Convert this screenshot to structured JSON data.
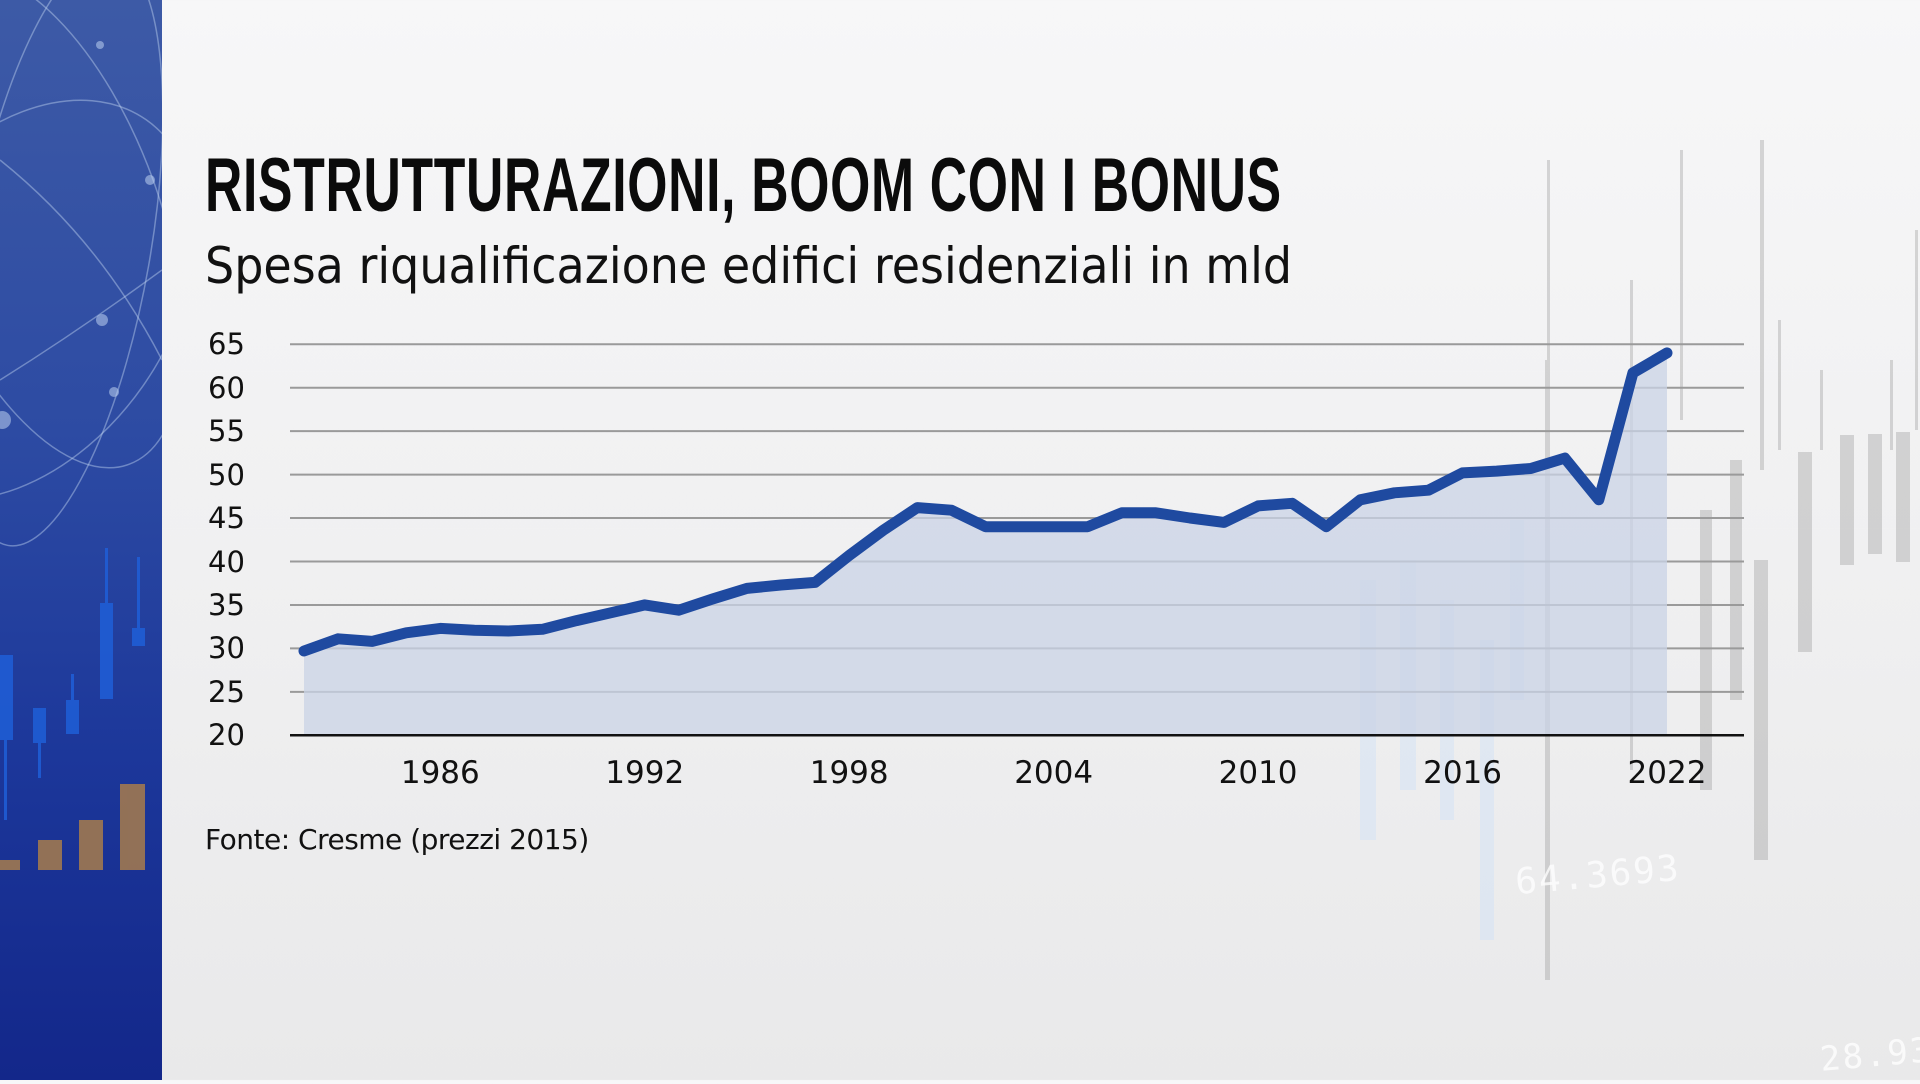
{
  "header": {
    "title": "RISTRUTTURAZIONI, BOOM CON I BONUS",
    "subtitle": "Spesa riqualificazione edifici residenziali in mld"
  },
  "footer": {
    "source": "Fonte: Cresme (prezzi 2015)"
  },
  "colors": {
    "line": "#1f4aa0",
    "fill": "#c9d3e6",
    "grid": "#9a9a9a",
    "axis": "#111111",
    "panel_top": "#3d5aa6",
    "panel_bottom": "#13278a"
  },
  "decorations": {
    "bg_number_1": "64.3693",
    "bg_number_2": "28.93"
  },
  "chart_data": {
    "type": "area",
    "title": "RISTRUTTURAZIONI, BOOM CON I BONUS",
    "subtitle": "Spesa riqualificazione edifici residenziali in mld",
    "xlabel": "",
    "ylabel": "",
    "source": "Fonte: Cresme (prezzi 2015)",
    "ylim": [
      20,
      65
    ],
    "yticks": [
      65,
      60,
      55,
      50,
      45,
      40,
      35,
      30,
      25,
      20
    ],
    "xticks": [
      1986,
      1992,
      1998,
      2004,
      2010,
      2016,
      2022
    ],
    "xlim": [
      1982,
      2022
    ],
    "grid": true,
    "legend": null,
    "x": [
      1982,
      1983,
      1984,
      1985,
      1986,
      1987,
      1988,
      1989,
      1990,
      1991,
      1992,
      1993,
      1994,
      1995,
      1996,
      1997,
      1998,
      1999,
      2000,
      2001,
      2002,
      2003,
      2004,
      2005,
      2006,
      2007,
      2008,
      2009,
      2010,
      2011,
      2012,
      2013,
      2014,
      2015,
      2016,
      2017,
      2018,
      2019,
      2020,
      2021,
      2022
    ],
    "series": [
      {
        "name": "Spesa riqualificazione edifici residenziali (mld, prezzi 2015)",
        "values": [
          29.7,
          31.1,
          30.8,
          31.8,
          32.3,
          32.1,
          32.0,
          32.2,
          33.2,
          34.1,
          35.0,
          34.4,
          35.7,
          36.9,
          37.3,
          37.6,
          40.7,
          43.6,
          46.2,
          45.9,
          44.0,
          44.0,
          44.0,
          44.0,
          45.6,
          45.6,
          45.0,
          44.5,
          46.4,
          46.7,
          44.0,
          47.1,
          47.9,
          48.2,
          50.2,
          50.4,
          50.7,
          51.9,
          47.1,
          61.7,
          64.0
        ]
      }
    ]
  }
}
